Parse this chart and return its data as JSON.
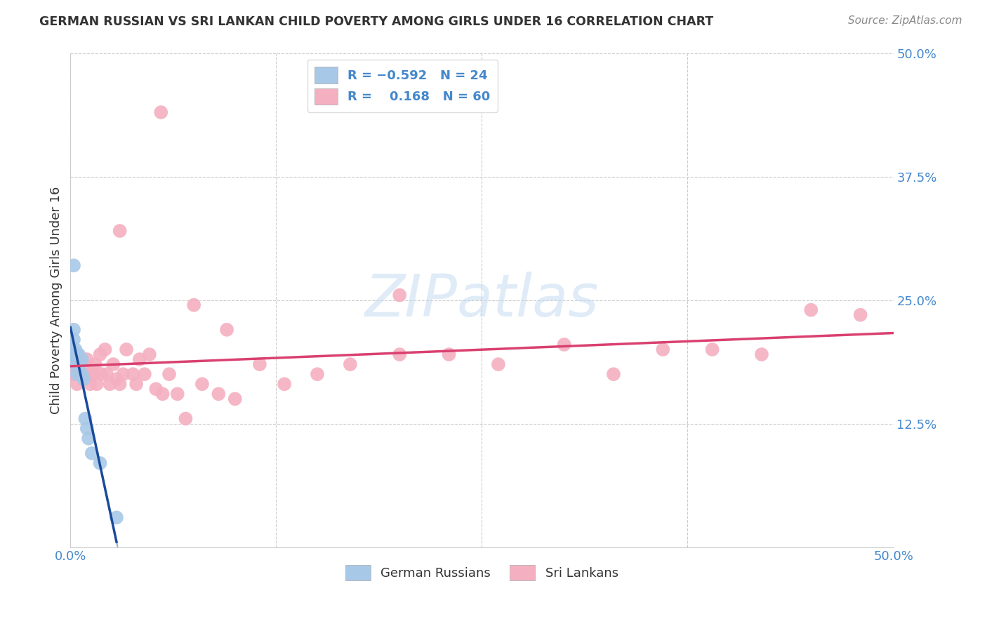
{
  "title": "GERMAN RUSSIAN VS SRI LANKAN CHILD POVERTY AMONG GIRLS UNDER 16 CORRELATION CHART",
  "source": "Source: ZipAtlas.com",
  "ylabel": "Child Poverty Among Girls Under 16",
  "xlim": [
    0.0,
    0.5
  ],
  "ylim": [
    0.0,
    0.5
  ],
  "german_russian_color": "#a8c8e8",
  "sri_lankan_color": "#f4b0c0",
  "german_russian_line_color": "#1a4a9a",
  "sri_lankan_line_color": "#d94070",
  "watermark_text": "ZIPatlas",
  "german_russian_x": [
    0.001,
    0.001,
    0.002,
    0.002,
    0.002,
    0.003,
    0.003,
    0.003,
    0.004,
    0.004,
    0.004,
    0.005,
    0.005,
    0.005,
    0.006,
    0.007,
    0.007,
    0.008,
    0.009,
    0.01,
    0.011,
    0.013,
    0.018,
    0.028
  ],
  "german_russian_y": [
    0.2,
    0.195,
    0.285,
    0.22,
    0.21,
    0.2,
    0.195,
    0.185,
    0.195,
    0.185,
    0.175,
    0.195,
    0.185,
    0.18,
    0.175,
    0.19,
    0.175,
    0.17,
    0.13,
    0.12,
    0.11,
    0.095,
    0.085,
    0.03
  ],
  "sri_lankan_x": [
    0.001,
    0.002,
    0.002,
    0.003,
    0.004,
    0.004,
    0.005,
    0.006,
    0.006,
    0.007,
    0.008,
    0.009,
    0.01,
    0.011,
    0.012,
    0.014,
    0.015,
    0.016,
    0.018,
    0.019,
    0.021,
    0.022,
    0.024,
    0.026,
    0.028,
    0.03,
    0.032,
    0.034,
    0.038,
    0.04,
    0.042,
    0.045,
    0.048,
    0.052,
    0.056,
    0.06,
    0.065,
    0.07,
    0.08,
    0.09,
    0.1,
    0.115,
    0.13,
    0.15,
    0.17,
    0.2,
    0.23,
    0.26,
    0.3,
    0.33,
    0.36,
    0.39,
    0.42,
    0.45,
    0.48,
    0.03,
    0.055,
    0.075,
    0.095,
    0.2
  ],
  "sri_lankan_y": [
    0.175,
    0.175,
    0.185,
    0.18,
    0.185,
    0.165,
    0.175,
    0.175,
    0.19,
    0.175,
    0.185,
    0.175,
    0.19,
    0.175,
    0.165,
    0.175,
    0.185,
    0.165,
    0.195,
    0.175,
    0.2,
    0.175,
    0.165,
    0.185,
    0.17,
    0.165,
    0.175,
    0.2,
    0.175,
    0.165,
    0.19,
    0.175,
    0.195,
    0.16,
    0.155,
    0.175,
    0.155,
    0.13,
    0.165,
    0.155,
    0.15,
    0.185,
    0.165,
    0.175,
    0.185,
    0.195,
    0.195,
    0.185,
    0.205,
    0.175,
    0.2,
    0.2,
    0.195,
    0.24,
    0.235,
    0.32,
    0.44,
    0.245,
    0.22,
    0.255
  ]
}
